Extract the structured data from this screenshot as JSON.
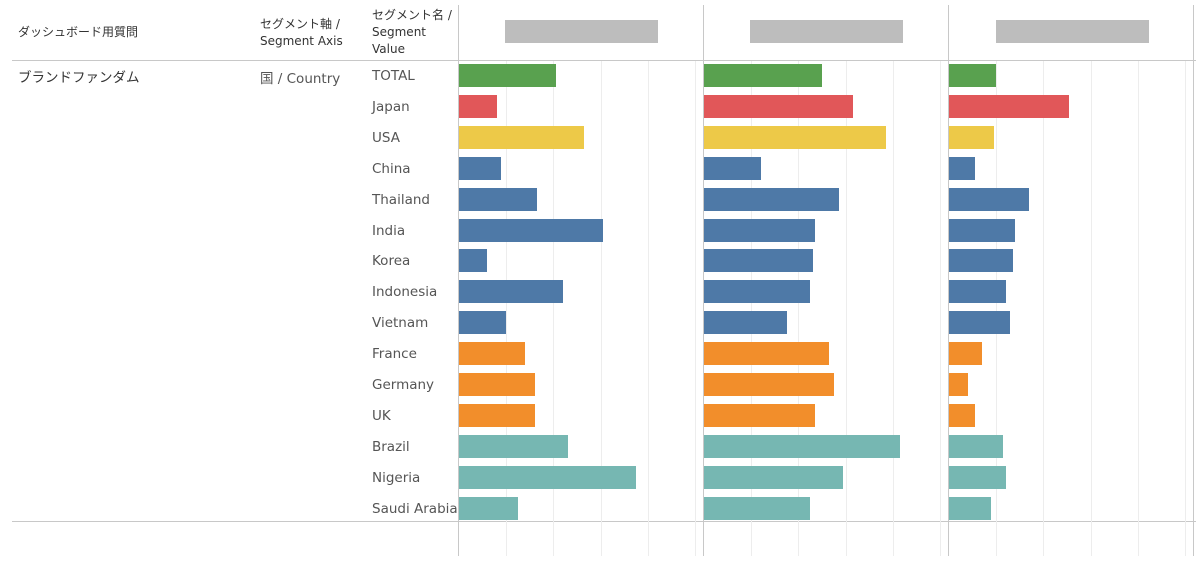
{
  "headers": {
    "question": "ダッシュボード用質問",
    "segment_axis": "セグメント軸 / Segment Axis",
    "segment_value": "セグメント名 / Segment Value"
  },
  "row": {
    "question": "ブランドファンダム",
    "axis": "国 / Country"
  },
  "colors": {
    "total": "#59a14f",
    "japan": "#e15759",
    "usa": "#edc948",
    "asia": "#4e79a7",
    "europe": "#f28e2b",
    "other": "#76b7b2"
  },
  "chart_data": {
    "type": "bar",
    "orientation": "horizontal",
    "title": "",
    "xlabel": "",
    "ylabel": "",
    "xlim": [
      0,
      100
    ],
    "categories": [
      "TOTAL",
      "Japan",
      "USA",
      "China",
      "Thailand",
      "India",
      "Korea",
      "Indonesia",
      "Vietnam",
      "France",
      "Germany",
      "UK",
      "Brazil",
      "Nigeria",
      "Saudi Arabia"
    ],
    "category_groups": [
      "total",
      "japan",
      "usa",
      "asia",
      "asia",
      "asia",
      "asia",
      "asia",
      "asia",
      "europe",
      "europe",
      "europe",
      "other",
      "other",
      "other"
    ],
    "series": [
      {
        "name": "",
        "values": [
          41,
          16,
          53,
          18,
          33,
          61,
          12,
          44,
          20,
          28,
          32,
          32,
          46,
          75,
          25
        ]
      },
      {
        "name": "",
        "values": [
          50,
          63,
          77,
          24,
          57,
          47,
          46,
          45,
          35,
          53,
          55,
          47,
          83,
          59,
          45
        ]
      },
      {
        "name": "",
        "values": [
          20,
          51,
          19,
          11,
          34,
          28,
          27,
          24,
          26,
          14,
          8,
          11,
          23,
          24,
          18
        ]
      }
    ]
  }
}
